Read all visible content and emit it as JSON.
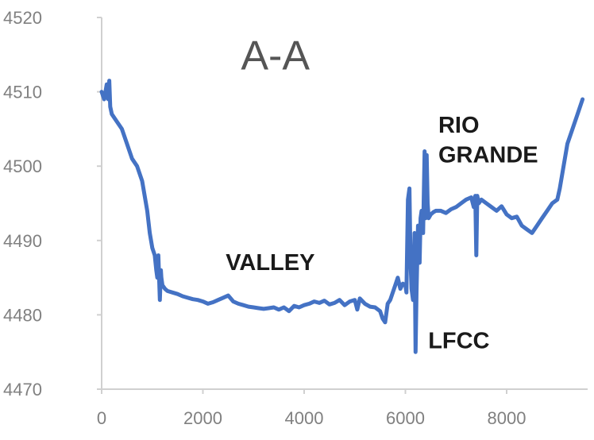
{
  "chart_data": {
    "type": "line",
    "title": "A-A",
    "xlabel": "",
    "ylabel": "",
    "xlim": [
      0,
      9600
    ],
    "ylim": [
      4470,
      4520
    ],
    "x_ticks": [
      0,
      2000,
      4000,
      6000,
      8000
    ],
    "y_ticks": [
      4470,
      4480,
      4490,
      4500,
      4510,
      4520
    ],
    "x_tick_labels": [
      "0",
      "2000",
      "4000",
      "6000",
      "8000"
    ],
    "y_tick_labels": [
      "4470",
      "4480",
      "4490",
      "4500",
      "4510",
      "4520"
    ],
    "grid": false,
    "legend": "none",
    "line_color": "#4472c4",
    "annotations": [
      {
        "text": "A-A",
        "x": 2750,
        "y": 4513,
        "role": "title"
      },
      {
        "text": "RIO",
        "x": 6650,
        "y": 4504.5
      },
      {
        "text": "GRANDE",
        "x": 6650,
        "y": 4500.5
      },
      {
        "text": "VALLEY",
        "x": 2450,
        "y": 4486
      },
      {
        "text": "LFCC",
        "x": 6450,
        "y": 4475.5
      }
    ],
    "series": [
      {
        "x": [
          0,
          50,
          100,
          130,
          150,
          170,
          200,
          300,
          400,
          500,
          600,
          700,
          800,
          900,
          950,
          1000,
          1050,
          1080,
          1100,
          1120,
          1150,
          1170,
          1180,
          1200,
          1250,
          1300,
          1400,
          1500,
          1600,
          1700,
          1800,
          1900,
          2000,
          2100,
          2200,
          2300,
          2400,
          2500,
          2600,
          2700,
          2800,
          2900,
          3000,
          3100,
          3200,
          3300,
          3400,
          3500,
          3600,
          3700,
          3800,
          3900,
          4000,
          4100,
          4200,
          4300,
          4400,
          4500,
          4600,
          4700,
          4800,
          4900,
          5000,
          5050,
          5100,
          5200,
          5300,
          5400,
          5500,
          5550,
          5600,
          5650,
          5700,
          5750,
          5800,
          5850,
          5900,
          5950,
          6000,
          6020,
          6050,
          6080,
          6100,
          6120,
          6150,
          6180,
          6200,
          6220,
          6250,
          6280,
          6300,
          6320,
          6350,
          6380,
          6400,
          6420,
          6440,
          6460,
          6500,
          6550,
          6600,
          6700,
          6800,
          6900,
          7000,
          7100,
          7200,
          7300,
          7350,
          7380,
          7400,
          7420,
          7450,
          7500,
          7600,
          7700,
          7800,
          7900,
          8000,
          8100,
          8200,
          8300,
          8400,
          8500,
          8600,
          8700,
          8800,
          8900,
          9000,
          9050,
          9100,
          9200,
          9300,
          9400,
          9500
        ],
        "y": [
          4510,
          4509,
          4511,
          4509,
          4511.5,
          4508,
          4507,
          4506,
          4505,
          4503,
          4501,
          4500,
          4498,
          4494,
          4491,
          4489,
          4488,
          4486,
          4485,
          4488,
          4482,
          4486,
          4485,
          4484,
          4483.5,
          4483.2,
          4483,
          4482.8,
          4482.5,
          4482.3,
          4482.1,
          4482,
          4481.8,
          4481.5,
          4481.7,
          4482,
          4482.3,
          4482.6,
          4481.8,
          4481.5,
          4481.3,
          4481.1,
          4481,
          4480.9,
          4480.8,
          4480.9,
          4481,
          4480.7,
          4481,
          4480.5,
          4481.2,
          4481,
          4481.3,
          4481.5,
          4481.8,
          4481.6,
          4481.9,
          4481.4,
          4481.6,
          4482,
          4481.3,
          4481.8,
          4482,
          4480.7,
          4482.2,
          4481.5,
          4481.1,
          4481,
          4480.5,
          4479.5,
          4479,
          4481.5,
          4482,
          4483,
          4484,
          4485,
          4483.5,
          4484.2,
          4484,
          4483,
          4495.5,
          4497,
          4487.5,
          4483.5,
          4482,
          4491,
          4475,
          4483,
          4492,
          4487,
          4493,
          4494,
          4491,
          4502,
          4493,
          4501.5,
          4495,
          4493,
          4493.5,
          4493.8,
          4494,
          4494,
          4493.7,
          4494.2,
          4494.5,
          4495,
          4495.5,
          4495.8,
          4494.5,
          4496,
          4488,
          4496,
          4495,
          4495.5,
          4495,
          4494.5,
          4494,
          4494.6,
          4493.5,
          4493,
          4493.2,
          4492,
          4491.5,
          4491,
          4492,
          4493,
          4494,
          4495,
          4495.5,
          4497,
          4499,
          4503,
          4505,
          4507,
          4509
        ]
      }
    ]
  }
}
